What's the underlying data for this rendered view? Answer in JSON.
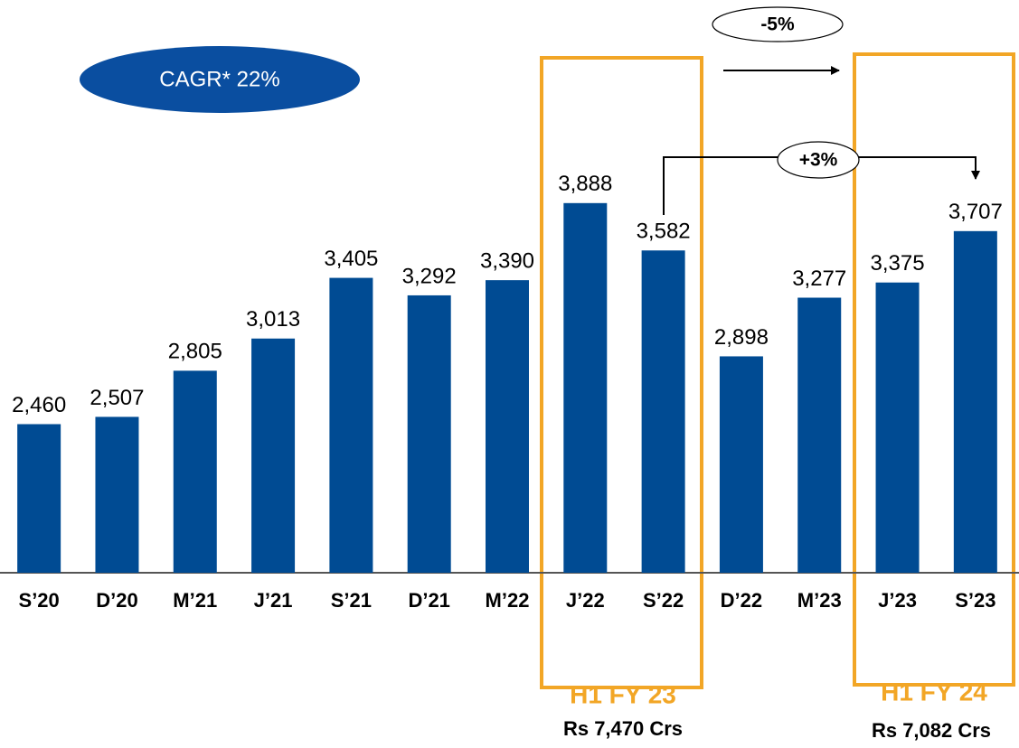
{
  "chart_data": {
    "type": "bar",
    "categories": [
      "S’20",
      "D’20",
      "M’21",
      "J’21",
      "S’21",
      "D’21",
      "M’22",
      "J’22",
      "S’22",
      "D’22",
      "M’23",
      "J’23",
      "S’23"
    ],
    "values": [
      2460,
      2507,
      2805,
      3013,
      3405,
      3292,
      3390,
      3888,
      3582,
      2898,
      3277,
      3375,
      3707
    ],
    "value_labels": [
      "2,460",
      "2,507",
      "2,805",
      "3,013",
      "3,405",
      "3,292",
      "3,390",
      "3,888",
      "3,582",
      "2,898",
      "3,277",
      "3,375",
      "3,707"
    ],
    "color": "#004b93",
    "ylim": [
      1500,
      5200
    ],
    "annotations": [
      "CAGR* 22%",
      "-5%",
      "+3%",
      "H1 FY 23",
      "Rs 7,470 Crs",
      "H1 FY 24",
      "Rs 7,082 Crs"
    ]
  }
}
